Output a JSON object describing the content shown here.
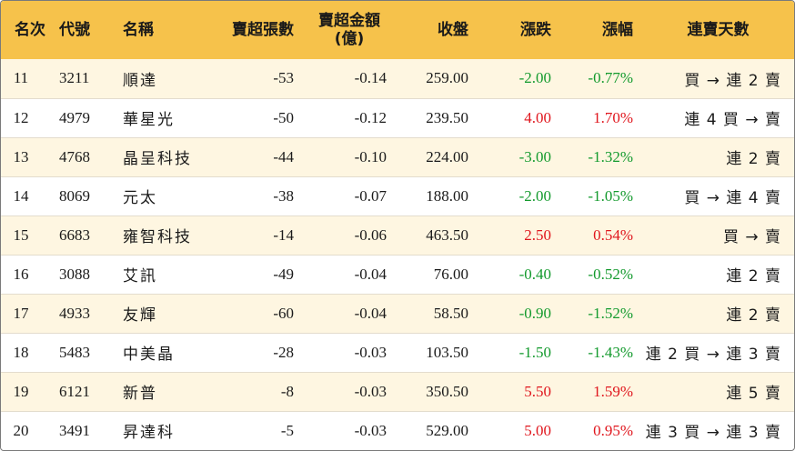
{
  "headers": {
    "rank": "名次",
    "code": "代號",
    "name": "名稱",
    "net_lots": "賣超張數",
    "net_amount_line1": "賣超金額",
    "net_amount_line2": "(億)",
    "close": "收盤",
    "change": "漲跌",
    "change_pct": "漲幅",
    "streak": "連賣天數"
  },
  "colors": {
    "header_bg": "#f6c24b",
    "alt_row_bg": "#fef6e1",
    "up": "#e0161d",
    "down": "#139a2d"
  },
  "rows": [
    {
      "rank": "11",
      "code": "3211",
      "name": "順達",
      "net_lots": "-53",
      "net_amount": "-0.14",
      "close": "259.00",
      "change": "-2.00",
      "change_pct": "-0.77%",
      "direction": "down",
      "streak": "買 → 連 2 賣"
    },
    {
      "rank": "12",
      "code": "4979",
      "name": "華星光",
      "net_lots": "-50",
      "net_amount": "-0.12",
      "close": "239.50",
      "change": "4.00",
      "change_pct": "1.70%",
      "direction": "up",
      "streak": "連 4 買 → 賣"
    },
    {
      "rank": "13",
      "code": "4768",
      "name": "晶呈科技",
      "net_lots": "-44",
      "net_amount": "-0.10",
      "close": "224.00",
      "change": "-3.00",
      "change_pct": "-1.32%",
      "direction": "down",
      "streak": "連 2 賣"
    },
    {
      "rank": "14",
      "code": "8069",
      "name": "元太",
      "net_lots": "-38",
      "net_amount": "-0.07",
      "close": "188.00",
      "change": "-2.00",
      "change_pct": "-1.05%",
      "direction": "down",
      "streak": "買 → 連 4 賣"
    },
    {
      "rank": "15",
      "code": "6683",
      "name": "雍智科技",
      "net_lots": "-14",
      "net_amount": "-0.06",
      "close": "463.50",
      "change": "2.50",
      "change_pct": "0.54%",
      "direction": "up",
      "streak": "買 → 賣"
    },
    {
      "rank": "16",
      "code": "3088",
      "name": "艾訊",
      "net_lots": "-49",
      "net_amount": "-0.04",
      "close": "76.00",
      "change": "-0.40",
      "change_pct": "-0.52%",
      "direction": "down",
      "streak": "連 2 賣"
    },
    {
      "rank": "17",
      "code": "4933",
      "name": "友輝",
      "net_lots": "-60",
      "net_amount": "-0.04",
      "close": "58.50",
      "change": "-0.90",
      "change_pct": "-1.52%",
      "direction": "down",
      "streak": "連 2 賣"
    },
    {
      "rank": "18",
      "code": "5483",
      "name": "中美晶",
      "net_lots": "-28",
      "net_amount": "-0.03",
      "close": "103.50",
      "change": "-1.50",
      "change_pct": "-1.43%",
      "direction": "down",
      "streak": "連 2 買 → 連 3 賣"
    },
    {
      "rank": "19",
      "code": "6121",
      "name": "新普",
      "net_lots": "-8",
      "net_amount": "-0.03",
      "close": "350.50",
      "change": "5.50",
      "change_pct": "1.59%",
      "direction": "up",
      "streak": "連 5 賣"
    },
    {
      "rank": "20",
      "code": "3491",
      "name": "昇達科",
      "net_lots": "-5",
      "net_amount": "-0.03",
      "close": "529.00",
      "change": "5.00",
      "change_pct": "0.95%",
      "direction": "up",
      "streak": "連 3 買 → 連 3 賣"
    }
  ]
}
